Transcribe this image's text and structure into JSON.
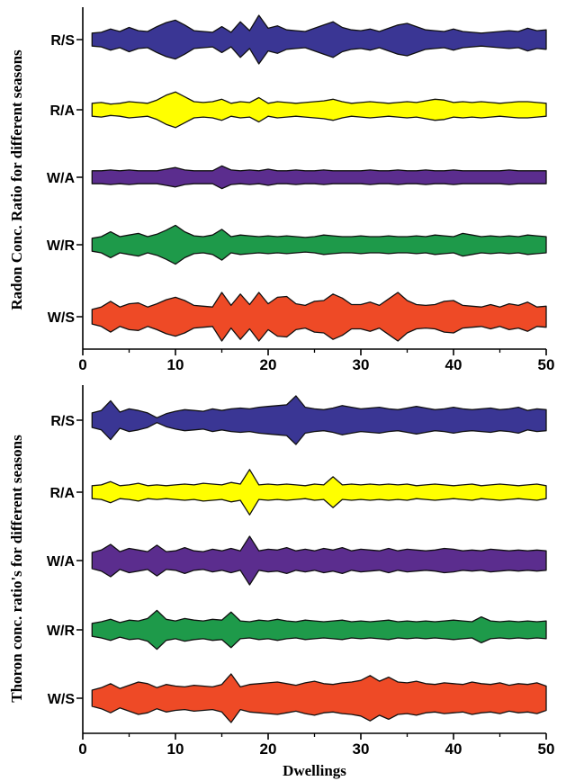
{
  "chart_data": [
    {
      "type": "area",
      "ylabel": "Radon Conc. Ratio for different seasons",
      "xlabel": "",
      "xlim": [
        0,
        50
      ],
      "xticks": [
        0,
        10,
        20,
        30,
        40,
        50
      ],
      "categories": [
        "R/S",
        "R/A",
        "W/A",
        "W/R",
        "W/S"
      ],
      "series": [
        {
          "name": "R/S",
          "color": "#3a3694",
          "x": [
            1,
            2,
            3,
            4,
            5,
            6,
            7,
            8,
            9,
            10,
            11,
            12,
            13,
            14,
            15,
            16,
            17,
            18,
            19,
            20,
            21,
            22,
            23,
            24,
            25,
            26,
            27,
            28,
            29,
            30,
            31,
            32,
            33,
            34,
            35,
            36,
            37,
            38,
            39,
            40,
            41,
            42,
            43,
            44,
            45,
            46,
            47,
            48,
            49,
            50
          ],
          "values": [
            0.8,
            0.9,
            1.3,
            1.0,
            1.5,
            1.1,
            1.0,
            1.6,
            2.1,
            2.4,
            1.8,
            1.1,
            1.0,
            0.9,
            1.6,
            0.9,
            2.2,
            1.1,
            3.0,
            1.4,
            1.7,
            1.2,
            1.1,
            1.0,
            1.4,
            1.8,
            2.2,
            1.5,
            1.2,
            1.1,
            1.3,
            1.0,
            1.4,
            1.8,
            2.0,
            1.6,
            1.2,
            1.1,
            1.0,
            1.3,
            1.0,
            0.9,
            0.8,
            0.9,
            1.0,
            1.1,
            1.0,
            1.4,
            1.1,
            1.2
          ]
        },
        {
          "name": "R/A",
          "color": "#ffff00",
          "x": [
            1,
            2,
            3,
            4,
            5,
            6,
            7,
            8,
            9,
            10,
            11,
            12,
            13,
            14,
            15,
            16,
            17,
            18,
            19,
            20,
            21,
            22,
            23,
            24,
            25,
            26,
            27,
            28,
            29,
            30,
            31,
            32,
            33,
            34,
            35,
            36,
            37,
            38,
            39,
            40,
            41,
            42,
            43,
            44,
            45,
            46,
            47,
            48,
            49,
            50
          ],
          "values": [
            0.8,
            0.9,
            0.7,
            0.8,
            1.0,
            0.9,
            0.8,
            1.2,
            1.8,
            2.2,
            1.6,
            1.0,
            0.9,
            1.0,
            1.3,
            0.8,
            1.0,
            0.9,
            1.5,
            0.8,
            1.0,
            0.9,
            0.8,
            0.9,
            1.0,
            1.1,
            1.3,
            1.0,
            0.8,
            0.9,
            1.0,
            0.9,
            0.8,
            0.9,
            1.0,
            0.9,
            1.1,
            1.3,
            1.2,
            0.9,
            1.0,
            0.9,
            1.0,
            0.9,
            0.8,
            0.9,
            1.0,
            1.0,
            0.9,
            0.8
          ]
        },
        {
          "name": "W/A",
          "color": "#5b2d8e",
          "x": [
            1,
            2,
            3,
            4,
            5,
            6,
            7,
            8,
            9,
            10,
            11,
            12,
            13,
            14,
            15,
            16,
            17,
            18,
            19,
            20,
            21,
            22,
            23,
            24,
            25,
            26,
            27,
            28,
            29,
            30,
            31,
            32,
            33,
            34,
            35,
            36,
            37,
            38,
            39,
            40,
            41,
            42,
            43,
            44,
            45,
            46,
            47,
            48,
            49,
            50
          ],
          "values": [
            0.8,
            0.8,
            0.9,
            0.8,
            0.9,
            0.8,
            0.8,
            0.8,
            1.0,
            1.2,
            0.9,
            0.8,
            0.8,
            0.8,
            1.4,
            0.9,
            0.8,
            0.9,
            0.8,
            1.0,
            0.8,
            0.8,
            0.9,
            0.8,
            0.8,
            0.9,
            0.8,
            0.8,
            0.8,
            0.8,
            0.9,
            0.8,
            0.8,
            0.9,
            0.8,
            0.8,
            0.9,
            0.8,
            0.8,
            0.9,
            0.8,
            0.8,
            0.8,
            0.8,
            0.8,
            0.9,
            0.8,
            0.8,
            0.8,
            0.8
          ]
        },
        {
          "name": "W/R",
          "color": "#1e9a4a",
          "x": [
            1,
            2,
            3,
            4,
            5,
            6,
            7,
            8,
            9,
            10,
            11,
            12,
            13,
            14,
            15,
            16,
            17,
            18,
            19,
            20,
            21,
            22,
            23,
            24,
            25,
            26,
            27,
            28,
            29,
            30,
            31,
            32,
            33,
            34,
            35,
            36,
            37,
            38,
            39,
            40,
            41,
            42,
            43,
            44,
            45,
            46,
            47,
            48,
            49,
            50
          ],
          "values": [
            0.8,
            1.0,
            1.6,
            1.0,
            1.2,
            1.4,
            1.0,
            1.3,
            1.8,
            2.4,
            1.6,
            1.1,
            1.0,
            1.2,
            1.9,
            1.0,
            1.2,
            1.1,
            1.0,
            1.1,
            1.0,
            1.1,
            1.0,
            0.9,
            1.0,
            1.2,
            1.1,
            1.0,
            1.0,
            1.1,
            1.0,
            1.0,
            1.1,
            1.0,
            1.0,
            1.1,
            1.0,
            1.2,
            1.1,
            1.0,
            1.4,
            1.2,
            1.0,
            1.1,
            1.0,
            1.1,
            1.0,
            1.2,
            1.1,
            1.0
          ]
        },
        {
          "name": "W/S",
          "color": "#ee4a26",
          "x": [
            1,
            2,
            3,
            4,
            5,
            6,
            7,
            8,
            9,
            10,
            11,
            12,
            13,
            14,
            15,
            16,
            17,
            18,
            19,
            20,
            21,
            22,
            23,
            24,
            25,
            26,
            27,
            28,
            29,
            30,
            31,
            32,
            33,
            34,
            35,
            36,
            37,
            38,
            39,
            40,
            41,
            42,
            43,
            44,
            45,
            46,
            47,
            48,
            49,
            50
          ],
          "values": [
            0.9,
            1.2,
            1.9,
            1.2,
            1.6,
            1.7,
            1.2,
            1.6,
            2.1,
            2.4,
            2.0,
            1.4,
            1.3,
            1.2,
            3.0,
            1.4,
            2.8,
            1.5,
            3.0,
            1.6,
            2.4,
            2.5,
            1.6,
            1.4,
            1.9,
            2.0,
            2.8,
            2.3,
            1.5,
            1.5,
            1.8,
            1.4,
            2.2,
            3.0,
            2.0,
            1.5,
            1.4,
            1.5,
            1.9,
            2.0,
            1.4,
            1.3,
            1.2,
            1.5,
            1.2,
            1.6,
            1.4,
            1.8,
            1.2,
            1.3
          ]
        }
      ]
    },
    {
      "type": "area",
      "ylabel": "Thoron conc. ratio's for different seasons",
      "xlabel": "Dwellings",
      "xlim": [
        0,
        50
      ],
      "xticks": [
        0,
        10,
        20,
        30,
        40,
        50
      ],
      "categories": [
        "R/S",
        "R/A",
        "W/A",
        "W/R",
        "W/S"
      ],
      "series": [
        {
          "name": "R/S",
          "color": "#3a3694",
          "x": [
            1,
            2,
            3,
            4,
            5,
            6,
            7,
            8,
            9,
            10,
            11,
            12,
            13,
            14,
            15,
            16,
            17,
            18,
            19,
            20,
            21,
            22,
            23,
            24,
            25,
            26,
            27,
            28,
            29,
            30,
            31,
            32,
            33,
            34,
            35,
            36,
            37,
            38,
            39,
            40,
            41,
            42,
            43,
            44,
            45,
            46,
            47,
            48,
            49,
            50
          ],
          "values": [
            0.9,
            1.2,
            2.4,
            1.0,
            1.4,
            1.2,
            0.9,
            0.3,
            0.8,
            1.1,
            1.3,
            1.2,
            1.1,
            1.4,
            1.2,
            1.4,
            1.5,
            1.4,
            1.6,
            1.7,
            1.8,
            1.9,
            3.0,
            1.6,
            1.4,
            1.3,
            1.5,
            1.8,
            1.6,
            1.4,
            1.5,
            1.6,
            1.4,
            1.3,
            1.5,
            1.7,
            1.5,
            1.3,
            1.4,
            1.6,
            1.4,
            1.3,
            1.4,
            1.5,
            1.3,
            1.4,
            1.6,
            1.2,
            1.4,
            1.3
          ]
        },
        {
          "name": "R/A",
          "color": "#ffff00",
          "x": [
            1,
            2,
            3,
            4,
            5,
            6,
            7,
            8,
            9,
            10,
            11,
            12,
            13,
            14,
            15,
            16,
            17,
            18,
            19,
            20,
            21,
            22,
            23,
            24,
            25,
            26,
            27,
            28,
            29,
            30,
            31,
            32,
            33,
            34,
            35,
            36,
            37,
            38,
            39,
            40,
            41,
            42,
            43,
            44,
            45,
            46,
            47,
            48,
            49,
            50
          ],
          "values": [
            0.8,
            0.9,
            1.3,
            0.8,
            0.9,
            1.1,
            0.8,
            0.9,
            0.8,
            0.9,
            1.0,
            0.9,
            1.1,
            1.0,
            0.9,
            1.2,
            1.0,
            2.8,
            0.9,
            1.0,
            0.9,
            1.0,
            0.9,
            0.8,
            1.0,
            0.9,
            1.9,
            0.9,
            1.0,
            0.9,
            1.0,
            0.9,
            1.0,
            0.9,
            1.0,
            0.8,
            0.9,
            1.0,
            0.9,
            0.8,
            0.9,
            1.0,
            0.8,
            0.9,
            1.0,
            0.9,
            0.8,
            0.9,
            1.0,
            0.8
          ]
        },
        {
          "name": "W/A",
          "color": "#5b2d8e",
          "x": [
            1,
            2,
            3,
            4,
            5,
            6,
            7,
            8,
            9,
            10,
            11,
            12,
            13,
            14,
            15,
            16,
            17,
            18,
            19,
            20,
            21,
            22,
            23,
            24,
            25,
            26,
            27,
            28,
            29,
            30,
            31,
            32,
            33,
            34,
            35,
            36,
            37,
            38,
            39,
            40,
            41,
            42,
            43,
            44,
            45,
            46,
            47,
            48,
            49,
            50
          ],
          "values": [
            1.0,
            1.3,
            2.0,
            1.1,
            1.5,
            1.3,
            1.1,
            1.9,
            1.1,
            1.2,
            1.6,
            1.2,
            1.1,
            1.4,
            1.2,
            1.5,
            1.2,
            3.0,
            1.2,
            1.4,
            1.3,
            1.6,
            1.2,
            1.4,
            1.2,
            1.5,
            1.3,
            1.6,
            1.2,
            1.4,
            1.3,
            1.2,
            1.5,
            1.2,
            1.4,
            1.3,
            1.2,
            1.3,
            1.5,
            1.4,
            1.2,
            1.3,
            1.2,
            1.4,
            1.3,
            1.2,
            1.3,
            1.2,
            1.3,
            1.2
          ]
        },
        {
          "name": "W/R",
          "color": "#1e9a4a",
          "x": [
            1,
            2,
            3,
            4,
            5,
            6,
            7,
            8,
            9,
            10,
            11,
            12,
            13,
            14,
            15,
            16,
            17,
            18,
            19,
            20,
            21,
            22,
            23,
            24,
            25,
            26,
            27,
            28,
            29,
            30,
            31,
            32,
            33,
            34,
            35,
            36,
            37,
            38,
            39,
            40,
            41,
            42,
            43,
            44,
            45,
            46,
            47,
            48,
            49,
            50
          ],
          "values": [
            0.8,
            1.0,
            1.3,
            0.9,
            1.2,
            1.1,
            1.4,
            2.4,
            1.3,
            1.1,
            1.4,
            1.2,
            1.1,
            1.3,
            1.2,
            2.2,
            1.1,
            1.0,
            1.2,
            1.1,
            1.3,
            1.1,
            1.0,
            1.2,
            1.1,
            1.0,
            1.1,
            1.2,
            1.0,
            1.1,
            1.0,
            1.1,
            1.2,
            1.0,
            1.1,
            1.0,
            1.1,
            1.0,
            1.1,
            1.2,
            1.1,
            1.0,
            1.6,
            1.1,
            1.0,
            1.1,
            1.0,
            1.1,
            1.0,
            1.1
          ]
        },
        {
          "name": "W/S",
          "color": "#ee4a26",
          "x": [
            1,
            2,
            3,
            4,
            5,
            6,
            7,
            8,
            9,
            10,
            11,
            12,
            13,
            14,
            15,
            16,
            17,
            18,
            19,
            20,
            21,
            22,
            23,
            24,
            25,
            26,
            27,
            28,
            29,
            30,
            31,
            32,
            33,
            34,
            35,
            36,
            37,
            38,
            39,
            40,
            41,
            42,
            43,
            44,
            45,
            46,
            47,
            48,
            49,
            50
          ],
          "values": [
            1.0,
            1.3,
            1.8,
            1.2,
            1.6,
            2.0,
            1.8,
            1.3,
            1.7,
            1.5,
            1.4,
            1.6,
            1.5,
            1.4,
            1.7,
            3.0,
            1.4,
            1.7,
            1.8,
            1.9,
            2.0,
            1.8,
            1.6,
            1.9,
            2.1,
            1.8,
            1.7,
            1.9,
            2.0,
            2.2,
            2.8,
            2.1,
            2.6,
            2.0,
            1.9,
            2.1,
            1.8,
            1.7,
            1.9,
            1.8,
            1.7,
            2.0,
            1.8,
            1.7,
            1.9,
            1.6,
            1.8,
            1.7,
            1.9,
            1.5
          ]
        }
      ]
    }
  ]
}
